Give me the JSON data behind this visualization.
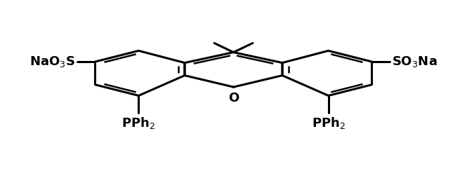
{
  "bg_color": "#ffffff",
  "line_color": "#000000",
  "line_width": 2.2,
  "fig_width": 6.65,
  "fig_height": 2.64,
  "dpi": 100
}
